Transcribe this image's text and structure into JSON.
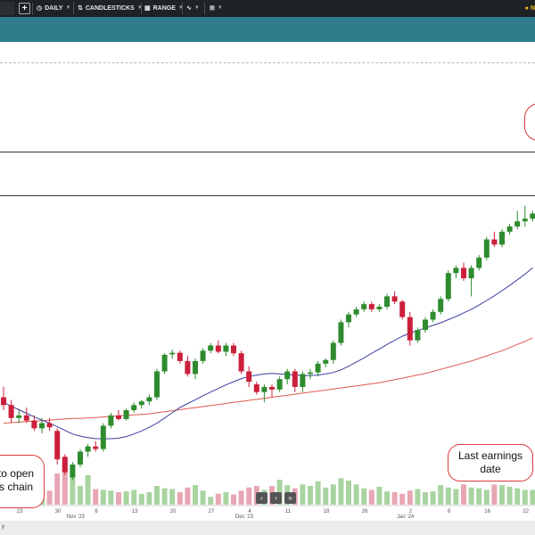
{
  "toolbar": {
    "partial_left": "",
    "interval_label": "DAILY",
    "chart_type_label": "CANDLESTICKS",
    "range_label": "RANGE",
    "notify_label": "N"
  },
  "callouts": {
    "left_line1": "to open",
    "left_line2": "s chain",
    "earnings_line1": "Last earnings",
    "earnings_line2": "date"
  },
  "footer": {
    "left_text": "y"
  },
  "colors": {
    "up": "#2e8b2e",
    "down": "#cc1f3c",
    "ma_short": "#3b3fa0",
    "ma_long": "#e05a4f",
    "vol_up": "#a9d4a0",
    "vol_down": "#e8a7b3",
    "banner": "#2e7c8c"
  },
  "chart_data": {
    "type": "candlestick",
    "x_tick_labels": [
      "23",
      "30",
      "6",
      "13",
      "20",
      "27",
      "4",
      "11",
      "18",
      "26",
      "2",
      "8",
      "16",
      "22"
    ],
    "x_month_labels": [
      "Nov '23",
      "Dec '23",
      "Jan '24"
    ],
    "candles": [
      [
        62.0,
        64.0,
        59.5,
        60.5
      ],
      [
        60.5,
        61.5,
        57.0,
        58.0
      ],
      [
        58.0,
        59.5,
        57.0,
        58.5
      ],
      [
        58.5,
        60.0,
        57.0,
        57.5
      ],
      [
        57.5,
        58.5,
        55.5,
        56.0
      ],
      [
        56.0,
        58.0,
        55.0,
        57.0
      ],
      [
        57.0,
        58.0,
        55.5,
        56.2
      ],
      [
        55.5,
        56.0,
        49.0,
        50.0
      ],
      [
        50.5,
        51.0,
        47.0,
        47.5
      ],
      [
        46.5,
        49.5,
        46.0,
        49.0
      ],
      [
        49.0,
        52.0,
        48.5,
        51.5
      ],
      [
        51.5,
        53.0,
        50.5,
        52.5
      ],
      [
        52.5,
        53.5,
        51.5,
        52.0
      ],
      [
        52.0,
        57.0,
        51.5,
        56.5
      ],
      [
        56.5,
        59.0,
        56.0,
        58.5
      ],
      [
        58.5,
        59.5,
        57.5,
        57.8
      ],
      [
        57.8,
        59.8,
        57.5,
        59.5
      ],
      [
        59.5,
        61.0,
        59.0,
        60.5
      ],
      [
        60.5,
        61.5,
        59.8,
        61.2
      ],
      [
        61.2,
        62.5,
        60.5,
        62.0
      ],
      [
        62.0,
        67.5,
        61.5,
        67.0
      ],
      [
        67.0,
        70.5,
        66.5,
        70.2
      ],
      [
        70.3,
        71.2,
        69.5,
        70.6
      ],
      [
        70.6,
        71.0,
        68.5,
        69.0
      ],
      [
        69.0,
        70.0,
        66.0,
        66.5
      ],
      [
        66.5,
        69.5,
        65.5,
        69.0
      ],
      [
        69.0,
        71.5,
        68.5,
        71.0
      ],
      [
        71.0,
        72.5,
        70.5,
        72.0
      ],
      [
        72.0,
        73.0,
        70.5,
        70.8
      ],
      [
        70.8,
        72.5,
        70.0,
        72.0
      ],
      [
        72.0,
        72.5,
        70.0,
        70.5
      ],
      [
        70.5,
        71.0,
        66.5,
        67.0
      ],
      [
        67.0,
        68.0,
        64.0,
        65.0
      ],
      [
        64.5,
        65.0,
        62.5,
        63.0
      ],
      [
        63.0,
        64.5,
        61.0,
        64.0
      ],
      [
        64.0,
        64.5,
        62.0,
        63.5
      ],
      [
        63.5,
        66.0,
        63.0,
        65.5
      ],
      [
        65.5,
        67.5,
        64.5,
        67.0
      ],
      [
        67.0,
        67.5,
        63.0,
        64.0
      ],
      [
        64.0,
        67.0,
        63.0,
        66.5
      ],
      [
        66.5,
        67.5,
        65.5,
        66.8
      ],
      [
        66.8,
        69.0,
        66.0,
        68.5
      ],
      [
        68.5,
        69.5,
        67.8,
        69.2
      ],
      [
        69.2,
        73.0,
        68.5,
        72.5
      ],
      [
        72.5,
        77.0,
        72.0,
        76.5
      ],
      [
        76.5,
        78.5,
        75.5,
        78.0
      ],
      [
        78.0,
        79.5,
        77.5,
        79.0
      ],
      [
        79.0,
        80.5,
        78.5,
        80.0
      ],
      [
        80.0,
        80.5,
        78.5,
        79.0
      ],
      [
        79.0,
        80.0,
        78.5,
        79.5
      ],
      [
        79.5,
        82.0,
        79.0,
        81.5
      ],
      [
        81.5,
        82.5,
        80.0,
        80.5
      ],
      [
        80.5,
        80.8,
        77.0,
        77.5
      ],
      [
        77.5,
        78.5,
        72.0,
        73.0
      ],
      [
        73.0,
        75.5,
        72.5,
        75.0
      ],
      [
        75.0,
        77.5,
        74.5,
        77.0
      ],
      [
        77.0,
        79.0,
        76.5,
        78.5
      ],
      [
        78.5,
        81.5,
        78.0,
        81.0
      ],
      [
        81.0,
        86.5,
        80.5,
        86.0
      ],
      [
        86.0,
        87.5,
        85.0,
        87.0
      ],
      [
        87.0,
        88.0,
        84.5,
        85.0
      ],
      [
        85.0,
        87.5,
        81.5,
        87.0
      ],
      [
        87.0,
        89.5,
        86.5,
        89.0
      ],
      [
        89.0,
        93.0,
        88.5,
        92.5
      ],
      [
        92.5,
        94.0,
        91.0,
        91.5
      ],
      [
        91.5,
        94.5,
        91.0,
        94.0
      ],
      [
        94.0,
        95.5,
        93.5,
        95.0
      ],
      [
        95.0,
        98.0,
        94.5,
        96.0
      ],
      [
        96.0,
        99.0,
        95.0,
        96.5
      ],
      [
        96.5,
        98.0,
        96.0,
        97.5
      ]
    ],
    "volume": [
      14,
      10,
      16,
      19,
      23,
      21,
      18,
      40,
      48,
      42,
      24,
      38,
      20,
      19,
      18,
      16,
      17,
      19,
      14,
      16,
      24,
      21,
      20,
      16,
      22,
      25,
      18,
      10,
      14,
      16,
      13,
      18,
      22,
      24,
      19,
      24,
      32,
      25,
      21,
      26,
      24,
      30,
      22,
      26,
      34,
      31,
      26,
      21,
      19,
      23,
      17,
      16,
      14,
      18,
      20,
      16,
      17,
      25,
      22,
      20,
      26,
      22,
      21,
      19,
      26,
      25,
      23,
      21,
      19,
      19
    ],
    "sma_short": [
      61.0,
      60.3,
      59.6,
      58.9,
      58.2,
      57.6,
      57.0,
      56.3,
      55.6,
      54.9,
      54.5,
      54.2,
      54.0,
      54.0,
      54.0,
      54.1,
      54.4,
      54.9,
      55.5,
      56.2,
      57.0,
      58.0,
      59.0,
      60.0,
      60.8,
      61.5,
      62.3,
      63.0,
      63.7,
      64.4,
      65.0,
      65.6,
      66.0,
      66.3,
      66.5,
      66.6,
      66.5,
      66.4,
      66.3,
      66.2,
      66.2,
      66.3,
      66.5,
      66.8,
      67.3,
      68.0,
      68.8,
      69.6,
      70.5,
      71.3,
      72.2,
      73.0,
      73.8,
      74.4,
      74.9,
      75.4,
      75.9,
      76.4,
      77.0,
      77.6,
      78.3,
      79.0,
      79.8,
      80.7,
      81.6,
      82.6,
      83.6,
      84.7,
      85.8,
      87.0
    ],
    "sma_long": [
      57.0,
      57.1,
      57.2,
      57.3,
      57.4,
      57.5,
      57.6,
      57.7,
      57.8,
      57.9,
      57.9,
      58.0,
      58.1,
      58.2,
      58.3,
      58.4,
      58.5,
      58.6,
      58.7,
      58.8,
      59.0,
      59.2,
      59.4,
      59.6,
      59.8,
      60.0,
      60.2,
      60.4,
      60.6,
      60.8,
      61.0,
      61.2,
      61.4,
      61.6,
      61.8,
      62.0,
      62.2,
      62.4,
      62.6,
      62.8,
      63.0,
      63.2,
      63.4,
      63.6,
      63.8,
      64.0,
      64.2,
      64.4,
      64.6,
      64.8,
      65.1,
      65.4,
      65.7,
      66.0,
      66.3,
      66.6,
      67.0,
      67.4,
      67.8,
      68.2,
      68.6,
      69.0,
      69.5,
      70.0,
      70.5,
      71.0,
      71.6,
      72.2,
      72.8,
      73.5
    ],
    "y_range": [
      44,
      100
    ],
    "grid": false
  }
}
